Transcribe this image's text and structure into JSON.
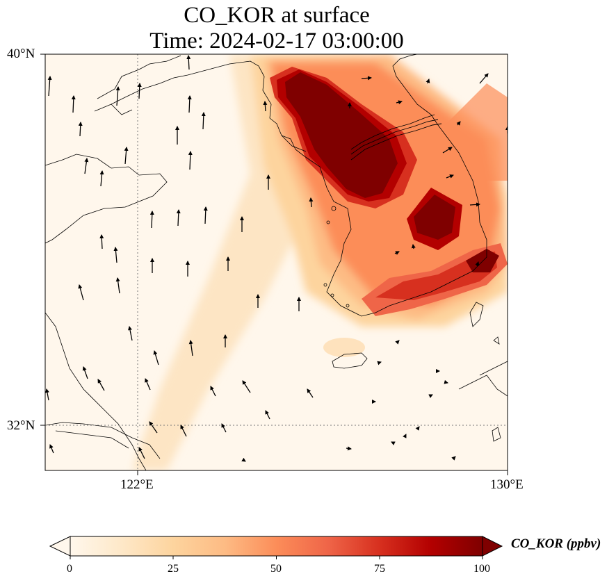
{
  "figure": {
    "title_line1": "CO_KOR at surface",
    "title_line2": "Time: 2024-02-17 03:00:00"
  },
  "map": {
    "type": "heatmap",
    "variable": "CO_KOR",
    "level": "surface",
    "time": "2024-02-17 03:00:00",
    "lat_range": [
      31,
      40
    ],
    "lon_range": [
      119,
      130
    ],
    "colormap": "OrRd",
    "gridlines": {
      "lat": [
        32
      ],
      "lon": [
        122
      ]
    },
    "x_ticks": [
      {
        "lon": 122,
        "label": "122°E"
      },
      {
        "lon": 130,
        "label": "130°E"
      }
    ],
    "y_ticks": [
      {
        "lat": 40,
        "label": "40°N"
      },
      {
        "lat": 32,
        "label": "32°N"
      }
    ],
    "overlays": [
      "coastlines",
      "national-borders",
      "wind-vectors"
    ]
  },
  "colorbar": {
    "label": "CO_KOR (ppbv)",
    "min": 0,
    "max": 100,
    "extend": "both",
    "ticks": [
      {
        "value": 0,
        "label": "0"
      },
      {
        "value": 25,
        "label": "25"
      },
      {
        "value": 50,
        "label": "50"
      },
      {
        "value": 75,
        "label": "75"
      },
      {
        "value": 100,
        "label": "100"
      }
    ],
    "colors": [
      "#fff7ec",
      "#fee8c8",
      "#fdd49e",
      "#fdbb84",
      "#fc8d59",
      "#ef6548",
      "#d7301f",
      "#b30000",
      "#7f0000"
    ]
  }
}
